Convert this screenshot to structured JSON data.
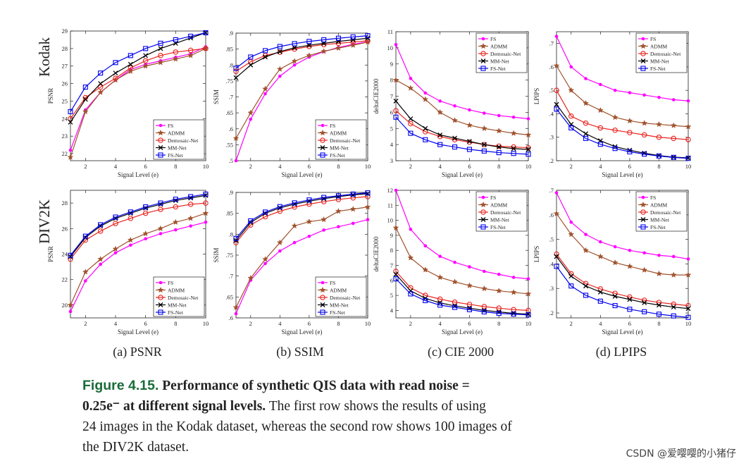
{
  "row_labels": [
    "Kodak",
    "DIV2K"
  ],
  "subcaptions": [
    "(a) PSNR",
    "(b) SSIM",
    "(c) CIE 2000",
    "(d) LPIPS"
  ],
  "caption": {
    "label": "Figure 4.15.",
    "title_line1": "Performance of synthetic QIS data with read noise =",
    "title_line2_value": "0.25e⁻",
    "title_line2_rest": "at different signal levels.",
    "body_line2": "The first row shows the results of using",
    "body_line3": "24 images in the Kodak dataset, whereas the second row shows 100 images of",
    "body_line4": "the DIV2K dataset."
  },
  "watermark": "CSDN @爱嘤嘤的小猪仔",
  "series_styles": [
    {
      "name": "FS",
      "color": "#ff00ff",
      "marker": "dot"
    },
    {
      "name": "ADMM",
      "color": "#a0522d",
      "marker": "star"
    },
    {
      "name": "Demosaic-Net",
      "color": "#e8231e",
      "marker": "circle"
    },
    {
      "name": "MM-Net",
      "color": "#000000",
      "marker": "x"
    },
    {
      "name": "FS-Net",
      "color": "#0000ee",
      "marker": "square"
    }
  ],
  "chart_data": [
    {
      "type": "line",
      "id": "kodak-psnr",
      "ylabel": "PSNR",
      "xlabel": "Signal Level (e)",
      "xlim": [
        1,
        10
      ],
      "ylim": [
        21.6,
        29
      ],
      "yticks": [
        22,
        23,
        24,
        25,
        26,
        27,
        28,
        29
      ],
      "xticks": [
        2,
        4,
        6,
        8,
        10
      ],
      "legend": "bottom-right",
      "x": [
        1,
        2,
        3,
        4,
        5,
        6,
        7,
        8,
        9,
        10
      ],
      "series": [
        {
          "name": "FS",
          "values": [
            22.2,
            24.5,
            25.5,
            26.2,
            26.8,
            27.1,
            27.3,
            27.5,
            27.7,
            28.1
          ]
        },
        {
          "name": "ADMM",
          "values": [
            21.8,
            24.4,
            25.5,
            26.2,
            26.7,
            27.0,
            27.2,
            27.4,
            27.6,
            28.0
          ]
        },
        {
          "name": "Demosaic-Net",
          "values": [
            24.0,
            25.2,
            25.8,
            26.3,
            26.9,
            27.3,
            27.6,
            27.8,
            27.9,
            28.0
          ]
        },
        {
          "name": "MM-Net",
          "values": [
            23.8,
            25.1,
            26.0,
            26.6,
            27.1,
            27.6,
            28.0,
            28.3,
            28.6,
            28.9
          ]
        },
        {
          "name": "FS-Net",
          "values": [
            24.4,
            25.8,
            26.6,
            27.2,
            27.6,
            28.0,
            28.3,
            28.5,
            28.7,
            28.9
          ]
        }
      ]
    },
    {
      "type": "line",
      "id": "kodak-ssim",
      "ylabel": "SSIM",
      "xlabel": "Signal Level (e)",
      "xlim": [
        1,
        10
      ],
      "ylim": [
        0.5,
        0.9
      ],
      "yticks": [
        0.5,
        0.55,
        0.6,
        0.65,
        0.7,
        0.75,
        0.8,
        0.85,
        0.9
      ],
      "xticks": [
        2,
        4,
        6,
        8,
        10
      ],
      "legend": "bottom-right",
      "x": [
        1,
        2,
        3,
        4,
        5,
        6,
        7,
        8,
        9,
        10
      ],
      "series": [
        {
          "name": "FS",
          "values": [
            0.5,
            0.63,
            0.71,
            0.765,
            0.8,
            0.825,
            0.842,
            0.855,
            0.865,
            0.873
          ]
        },
        {
          "name": "ADMM",
          "values": [
            0.57,
            0.65,
            0.725,
            0.787,
            0.812,
            0.83,
            0.843,
            0.853,
            0.862,
            0.872
          ]
        },
        {
          "name": "Demosaic-Net",
          "values": [
            0.78,
            0.81,
            0.83,
            0.84,
            0.85,
            0.858,
            0.864,
            0.868,
            0.872,
            0.876
          ]
        },
        {
          "name": "MM-Net",
          "values": [
            0.76,
            0.8,
            0.825,
            0.842,
            0.854,
            0.862,
            0.868,
            0.874,
            0.879,
            0.884
          ]
        },
        {
          "name": "FS-Net",
          "values": [
            0.79,
            0.825,
            0.845,
            0.858,
            0.867,
            0.874,
            0.879,
            0.884,
            0.888,
            0.892
          ]
        }
      ]
    },
    {
      "type": "line",
      "id": "kodak-cie",
      "ylabel": "deltaCIE2000",
      "xlabel": "Signal Level (e)",
      "xlim": [
        1,
        10
      ],
      "ylim": [
        3,
        11
      ],
      "yticks": [
        3,
        4,
        5,
        6,
        7,
        8,
        9,
        10,
        11
      ],
      "xticks": [
        2,
        4,
        6,
        8,
        10
      ],
      "legend": "top-right",
      "x": [
        1,
        2,
        3,
        4,
        5,
        6,
        7,
        8,
        9,
        10
      ],
      "series": [
        {
          "name": "FS",
          "values": [
            10.2,
            8.1,
            7.2,
            6.7,
            6.4,
            6.15,
            5.95,
            5.8,
            5.7,
            5.6
          ]
        },
        {
          "name": "ADMM",
          "values": [
            8.0,
            7.5,
            6.8,
            6.0,
            5.5,
            5.2,
            5.0,
            4.85,
            4.7,
            4.6
          ]
        },
        {
          "name": "Demosaic-Net",
          "values": [
            6.1,
            5.3,
            4.8,
            4.5,
            4.3,
            4.15,
            4.0,
            3.9,
            3.85,
            3.8
          ]
        },
        {
          "name": "MM-Net",
          "values": [
            6.7,
            5.6,
            5.0,
            4.6,
            4.4,
            4.2,
            4.0,
            3.85,
            3.75,
            3.7
          ]
        },
        {
          "name": "FS-Net",
          "values": [
            5.7,
            4.7,
            4.3,
            4.0,
            3.85,
            3.7,
            3.6,
            3.5,
            3.45,
            3.4
          ]
        }
      ]
    },
    {
      "type": "line",
      "id": "kodak-lpips",
      "ylabel": "LPIPS",
      "xlabel": "Signal Level (e)",
      "xlim": [
        1,
        10
      ],
      "ylim": [
        0.2,
        0.75
      ],
      "yticks": [
        0.2,
        0.3,
        0.4,
        0.5,
        0.6,
        0.7
      ],
      "xticks": [
        2,
        4,
        6,
        8,
        10
      ],
      "legend": "top-right",
      "x": [
        1,
        2,
        3,
        4,
        5,
        6,
        7,
        8,
        9,
        10
      ],
      "series": [
        {
          "name": "FS",
          "values": [
            0.73,
            0.6,
            0.55,
            0.525,
            0.5,
            0.49,
            0.48,
            0.47,
            0.46,
            0.455
          ]
        },
        {
          "name": "ADMM",
          "values": [
            0.605,
            0.5,
            0.445,
            0.415,
            0.385,
            0.37,
            0.36,
            0.355,
            0.35,
            0.345
          ]
        },
        {
          "name": "Demosaic-Net",
          "values": [
            0.5,
            0.39,
            0.36,
            0.34,
            0.33,
            0.32,
            0.31,
            0.3,
            0.295,
            0.29
          ]
        },
        {
          "name": "MM-Net",
          "values": [
            0.44,
            0.355,
            0.315,
            0.285,
            0.26,
            0.245,
            0.232,
            0.222,
            0.215,
            0.212
          ]
        },
        {
          "name": "FS-Net",
          "values": [
            0.42,
            0.34,
            0.295,
            0.27,
            0.252,
            0.238,
            0.228,
            0.22,
            0.214,
            0.21
          ]
        }
      ]
    },
    {
      "type": "line",
      "id": "div2k-psnr",
      "ylabel": "PSNR",
      "xlabel": "Signal Level (e)",
      "xlim": [
        1,
        10
      ],
      "ylim": [
        19,
        29
      ],
      "yticks": [
        20,
        22,
        24,
        26,
        28
      ],
      "xticks": [
        2,
        4,
        6,
        8,
        10
      ],
      "legend": "bottom-right",
      "x": [
        1,
        2,
        3,
        4,
        5,
        6,
        7,
        8,
        9,
        10
      ],
      "series": [
        {
          "name": "FS",
          "values": [
            19.5,
            21.9,
            23.2,
            24.1,
            24.7,
            25.2,
            25.6,
            25.9,
            26.2,
            26.5
          ]
        },
        {
          "name": "ADMM",
          "values": [
            20.0,
            22.6,
            23.6,
            24.4,
            25.1,
            25.6,
            26.0,
            26.5,
            26.8,
            27.2
          ]
        },
        {
          "name": "Demosaic-Net",
          "values": [
            23.6,
            25.1,
            25.8,
            26.4,
            26.8,
            27.2,
            27.5,
            27.7,
            27.9,
            28.0
          ]
        },
        {
          "name": "MM-Net",
          "values": [
            23.8,
            25.3,
            26.2,
            26.8,
            27.2,
            27.6,
            27.9,
            28.2,
            28.4,
            28.6
          ]
        },
        {
          "name": "FS-Net",
          "values": [
            23.9,
            25.4,
            26.3,
            26.9,
            27.3,
            27.7,
            28.0,
            28.3,
            28.5,
            28.7
          ]
        }
      ]
    },
    {
      "type": "line",
      "id": "div2k-ssim",
      "ylabel": "SSIM",
      "xlabel": "Signal Level (e)",
      "xlim": [
        1,
        10
      ],
      "ylim": [
        0.6,
        0.9
      ],
      "yticks": [
        0.6,
        0.65,
        0.7,
        0.75,
        0.8,
        0.85,
        0.9
      ],
      "xticks": [
        2,
        4,
        6,
        8,
        10
      ],
      "legend": "bottom-right",
      "x": [
        1,
        2,
        3,
        4,
        5,
        6,
        7,
        8,
        9,
        10
      ],
      "series": [
        {
          "name": "FS",
          "values": [
            0.61,
            0.69,
            0.73,
            0.76,
            0.78,
            0.795,
            0.81,
            0.818,
            0.826,
            0.835
          ]
        },
        {
          "name": "ADMM",
          "values": [
            0.625,
            0.695,
            0.74,
            0.78,
            0.82,
            0.83,
            0.835,
            0.855,
            0.86,
            0.865
          ]
        },
        {
          "name": "Demosaic-Net",
          "values": [
            0.78,
            0.822,
            0.842,
            0.855,
            0.865,
            0.872,
            0.878,
            0.883,
            0.887,
            0.89
          ]
        },
        {
          "name": "MM-Net",
          "values": [
            0.785,
            0.828,
            0.85,
            0.863,
            0.872,
            0.879,
            0.885,
            0.89,
            0.894,
            0.897
          ]
        },
        {
          "name": "FS-Net",
          "values": [
            0.79,
            0.832,
            0.853,
            0.866,
            0.875,
            0.882,
            0.888,
            0.892,
            0.896,
            0.899
          ]
        }
      ]
    },
    {
      "type": "line",
      "id": "div2k-cie",
      "ylabel": "deltaCIE2000",
      "xlabel": "Signal Level (e)",
      "xlim": [
        1,
        10
      ],
      "ylim": [
        3.5,
        12
      ],
      "yticks": [
        4,
        5,
        6,
        7,
        8,
        9,
        10,
        11,
        12
      ],
      "xticks": [
        2,
        4,
        6,
        8,
        10
      ],
      "legend": "top-right",
      "x": [
        1,
        2,
        3,
        4,
        5,
        6,
        7,
        8,
        9,
        10
      ],
      "series": [
        {
          "name": "FS",
          "values": [
            12.0,
            9.4,
            8.3,
            7.6,
            7.2,
            6.9,
            6.6,
            6.4,
            6.2,
            6.1
          ]
        },
        {
          "name": "ADMM",
          "values": [
            9.5,
            7.5,
            6.7,
            6.2,
            5.9,
            5.65,
            5.45,
            5.3,
            5.2,
            5.1
          ]
        },
        {
          "name": "Demosaic-Net",
          "values": [
            6.6,
            5.5,
            5.0,
            4.75,
            4.55,
            4.4,
            4.25,
            4.15,
            4.05,
            4.0
          ]
        },
        {
          "name": "MM-Net",
          "values": [
            6.4,
            5.3,
            4.8,
            4.5,
            4.3,
            4.15,
            4.0,
            3.9,
            3.8,
            3.75
          ]
        },
        {
          "name": "FS-Net",
          "values": [
            6.1,
            5.1,
            4.65,
            4.35,
            4.2,
            4.05,
            3.9,
            3.8,
            3.75,
            3.7
          ]
        }
      ]
    },
    {
      "type": "line",
      "id": "div2k-lpips",
      "ylabel": "LPIPS",
      "xlabel": "Signal Level (e)",
      "xlim": [
        1,
        10
      ],
      "ylim": [
        0.18,
        0.7
      ],
      "yticks": [
        0.2,
        0.3,
        0.4,
        0.5,
        0.6,
        0.7
      ],
      "xticks": [
        2,
        4,
        6,
        8,
        10
      ],
      "legend": "top-right",
      "x": [
        1,
        2,
        3,
        4,
        5,
        6,
        7,
        8,
        9,
        10
      ],
      "series": [
        {
          "name": "FS",
          "values": [
            0.69,
            0.57,
            0.52,
            0.49,
            0.47,
            0.455,
            0.445,
            0.435,
            0.43,
            0.42
          ]
        },
        {
          "name": "ADMM",
          "values": [
            0.605,
            0.52,
            0.455,
            0.43,
            0.405,
            0.39,
            0.375,
            0.36,
            0.355,
            0.355
          ]
        },
        {
          "name": "Demosaic-Net",
          "values": [
            0.44,
            0.36,
            0.32,
            0.298,
            0.28,
            0.265,
            0.252,
            0.243,
            0.236,
            0.23
          ]
        },
        {
          "name": "MM-Net",
          "values": [
            0.43,
            0.35,
            0.31,
            0.285,
            0.268,
            0.255,
            0.242,
            0.232,
            0.224,
            0.218
          ]
        },
        {
          "name": "FS-Net",
          "values": [
            0.39,
            0.31,
            0.272,
            0.248,
            0.23,
            0.215,
            0.205,
            0.195,
            0.188,
            0.182
          ]
        }
      ]
    }
  ]
}
